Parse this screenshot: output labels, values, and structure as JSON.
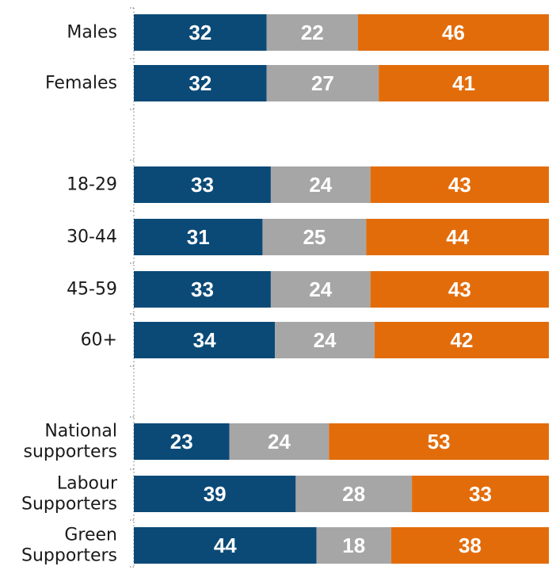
{
  "chart_data": {
    "type": "bar",
    "orientation": "horizontal",
    "stacked": true,
    "percent_stacked": true,
    "grid": false,
    "legend": "none",
    "xlim": [
      0,
      100
    ],
    "categories": [
      "Males",
      "Females",
      "18-29",
      "30-44",
      "45-59",
      "60+",
      "National supporters",
      "Labour Supporters",
      "Green Supporters"
    ],
    "category_lines": [
      [
        "Males"
      ],
      [
        "Females"
      ],
      [
        "18-29"
      ],
      [
        "30-44"
      ],
      [
        "45-59"
      ],
      [
        "60+"
      ],
      [
        "National",
        "supporters"
      ],
      [
        "Labour",
        "Supporters"
      ],
      [
        "Green",
        "Supporters"
      ]
    ],
    "groups": [
      [
        "Males",
        "Females"
      ],
      [
        "18-29",
        "30-44",
        "45-59",
        "60+"
      ],
      [
        "National supporters",
        "Labour Supporters",
        "Green Supporters"
      ]
    ],
    "series": [
      {
        "color": "#0b4a77",
        "values": [
          32,
          32,
          33,
          31,
          33,
          34,
          23,
          39,
          44
        ]
      },
      {
        "color": "#a6a6a6",
        "values": [
          22,
          27,
          24,
          25,
          24,
          24,
          24,
          28,
          18
        ]
      },
      {
        "color": "#e36c0a",
        "values": [
          46,
          41,
          43,
          44,
          43,
          42,
          53,
          33,
          38
        ]
      }
    ]
  }
}
